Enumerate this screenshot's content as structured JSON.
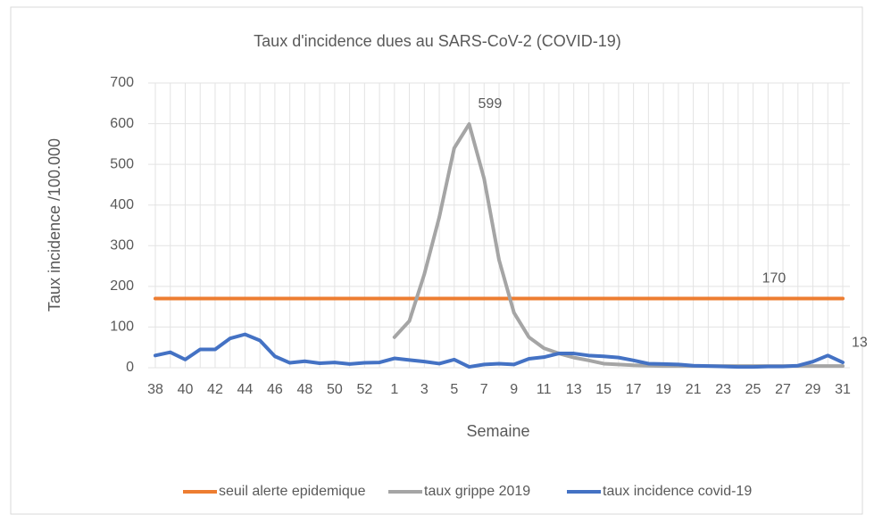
{
  "chart_data": {
    "type": "line",
    "title": "Taux d'incidence dues au SARS-CoV-2 (COVID-19)",
    "x_label": "Semaine",
    "y_label": "Taux incidence /100.000",
    "categories": [
      "38",
      null,
      "40",
      null,
      "42",
      null,
      "44",
      null,
      "46",
      null,
      "48",
      null,
      "50",
      null,
      "52",
      null,
      "1",
      null,
      "3",
      null,
      "5",
      null,
      "7",
      null,
      "9",
      null,
      "11",
      null,
      "13",
      null,
      "15",
      null,
      "17",
      null,
      "19",
      null,
      "21",
      null,
      "23",
      null,
      "25",
      null,
      "27",
      null,
      "29",
      null,
      "31"
    ],
    "ylim": [
      0,
      700
    ],
    "yticks": [
      0,
      100,
      200,
      300,
      400,
      500,
      600,
      700
    ],
    "grid": true,
    "legend": "bottom",
    "series": [
      {
        "name": "seuil alerte epidemique",
        "color": "#ED7D31",
        "data_label_index": 40,
        "values": [
          170,
          170,
          170,
          170,
          170,
          170,
          170,
          170,
          170,
          170,
          170,
          170,
          170,
          170,
          170,
          170,
          170,
          170,
          170,
          170,
          170,
          170,
          170,
          170,
          170,
          170,
          170,
          170,
          170,
          170,
          170,
          170,
          170,
          170,
          170,
          170,
          170,
          170,
          170,
          170,
          170,
          170,
          170,
          170,
          170,
          170,
          170
        ]
      },
      {
        "name": "taux grippe 2019",
        "color": "#A5A5A5",
        "data_label_index": 21,
        "values": [
          null,
          null,
          null,
          null,
          null,
          null,
          null,
          null,
          null,
          null,
          null,
          null,
          null,
          null,
          null,
          null,
          75,
          115,
          230,
          370,
          540,
          599,
          465,
          265,
          135,
          75,
          48,
          35,
          25,
          18,
          10,
          8,
          6,
          5,
          4,
          4,
          4,
          4,
          4,
          4,
          4,
          4,
          4,
          4,
          4,
          4,
          4
        ]
      },
      {
        "name": "taux incidence covid-19",
        "color": "#4472C4",
        "data_label_index": 46,
        "values": [
          30,
          38,
          20,
          45,
          45,
          72,
          82,
          67,
          28,
          12,
          16,
          11,
          13,
          9,
          12,
          13,
          23,
          19,
          15,
          10,
          20,
          2,
          8,
          10,
          8,
          22,
          26,
          35,
          35,
          30,
          28,
          25,
          18,
          10,
          9,
          8,
          5,
          4,
          3,
          2,
          2,
          3,
          3,
          5,
          15,
          30,
          13
        ]
      }
    ]
  }
}
